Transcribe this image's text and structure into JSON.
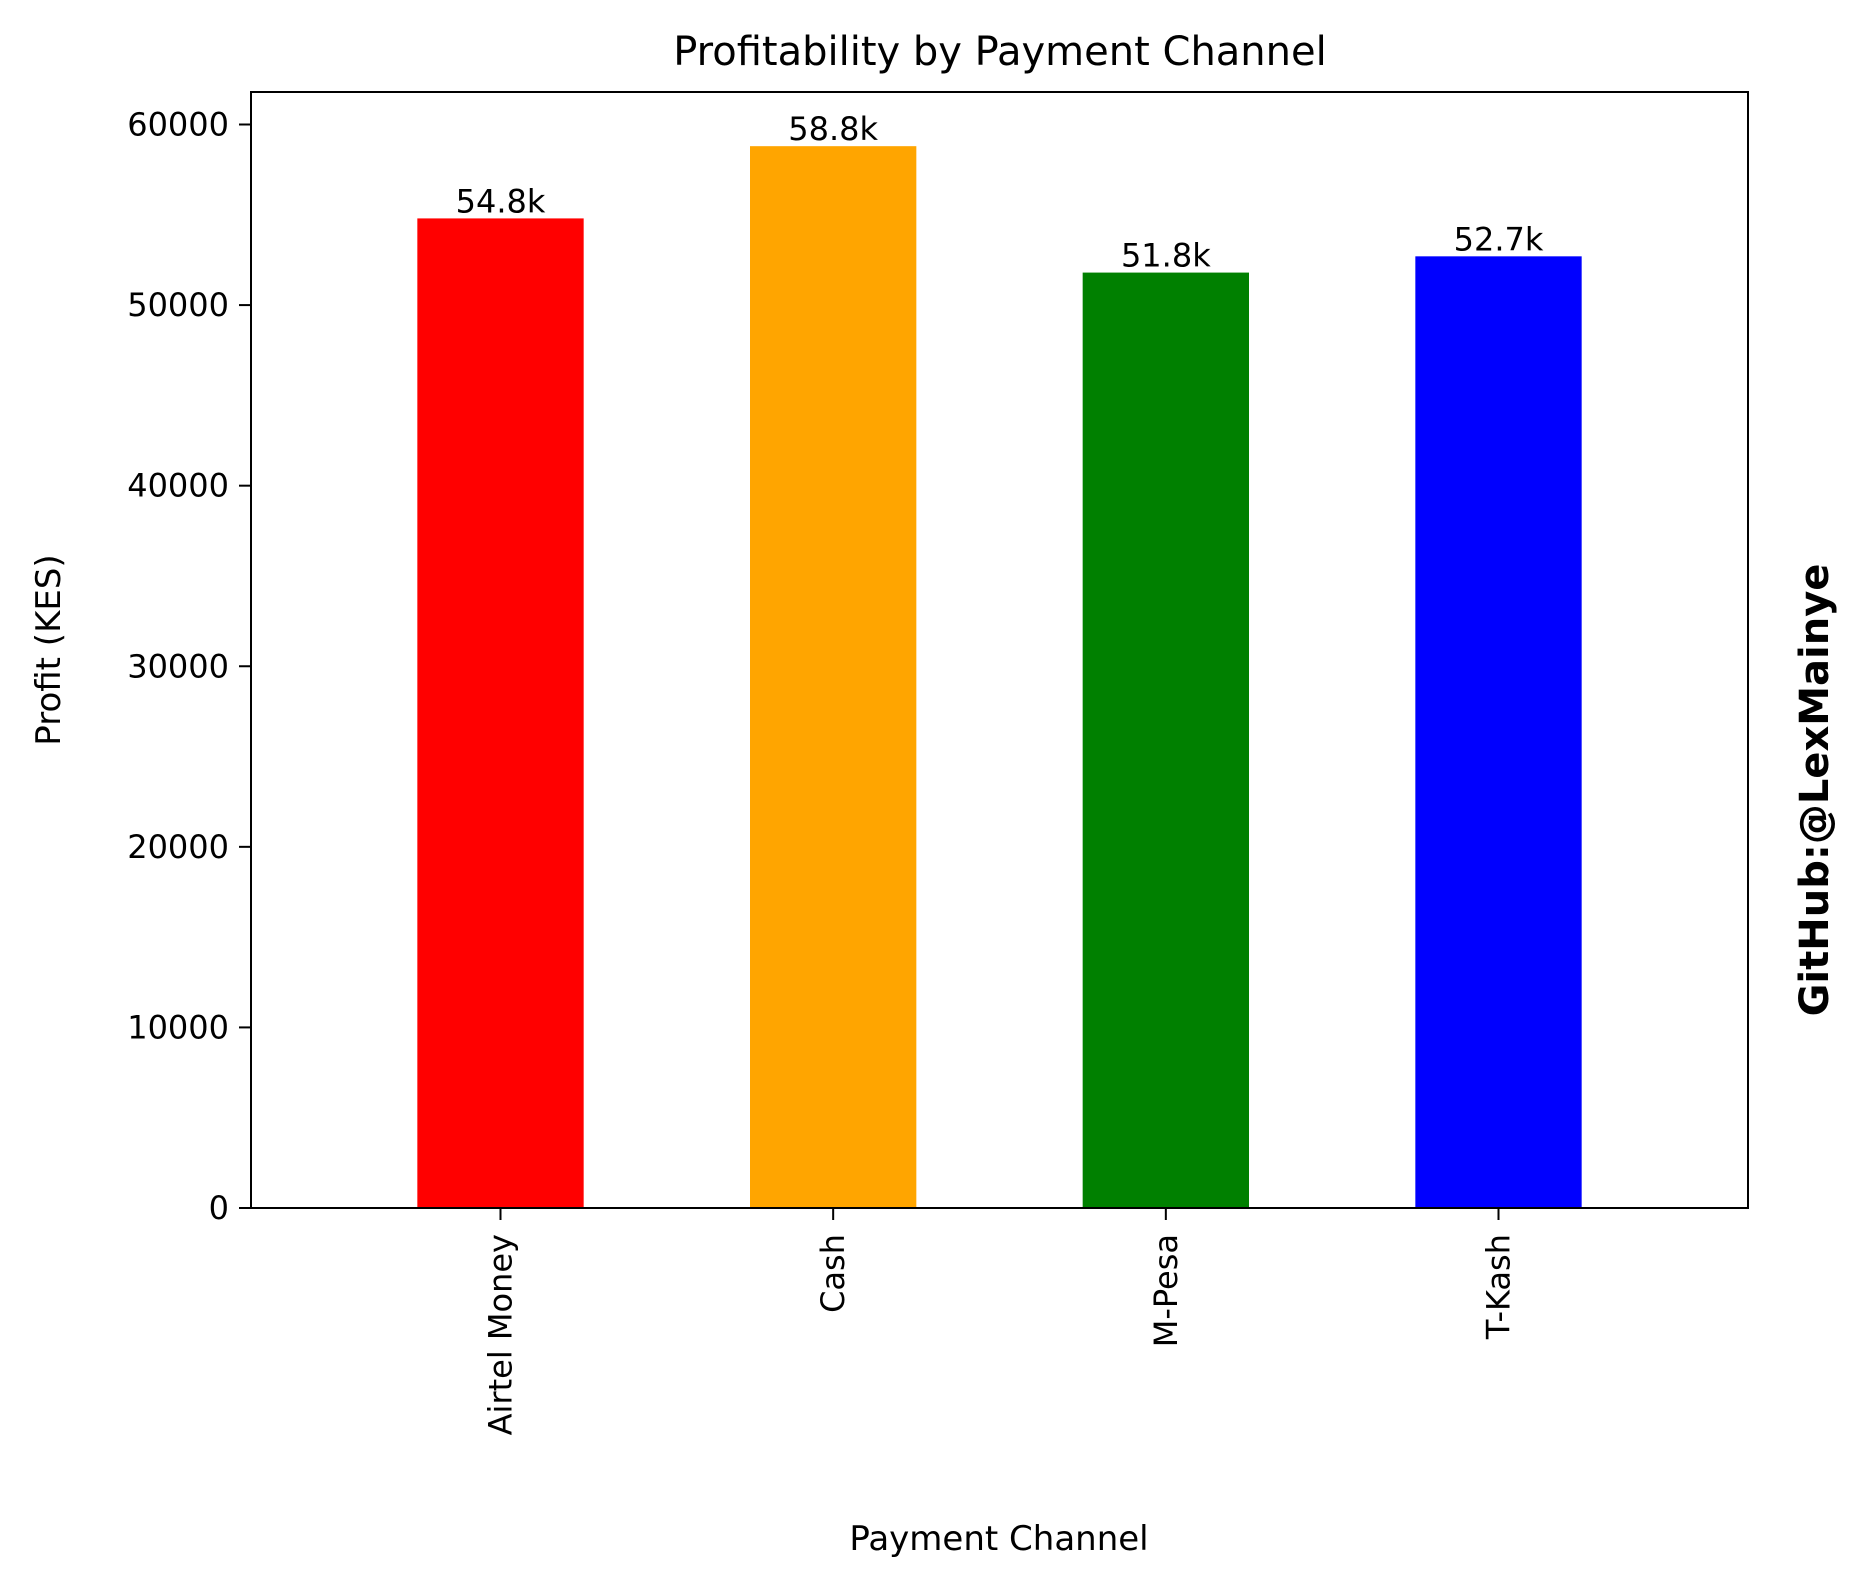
{
  "chart_data": {
    "type": "bar",
    "title": "Profitability by Payment Channel",
    "xlabel": "Payment Channel",
    "ylabel": "Profit (KES)",
    "categories": [
      "Airtel Money",
      "Cash",
      "M-Pesa",
      "T-Kash"
    ],
    "values": [
      54800,
      58800,
      51800,
      52700
    ],
    "data_labels": [
      "54.8k",
      "58.8k",
      "51.8k",
      "52.7k"
    ],
    "bar_colors": [
      "#ff0000",
      "#ffa500",
      "#008000",
      "#0000ff"
    ],
    "ylim": [
      0,
      61800
    ],
    "yticks": [
      0,
      10000,
      20000,
      30000,
      40000,
      50000,
      60000
    ],
    "ytick_labels": [
      "0",
      "10000",
      "20000",
      "30000",
      "40000",
      "50000",
      "60000"
    ],
    "grid": false,
    "legend": "none"
  },
  "watermark": {
    "text": "GitHub:@LexMainye",
    "color": "#ff0000"
  }
}
